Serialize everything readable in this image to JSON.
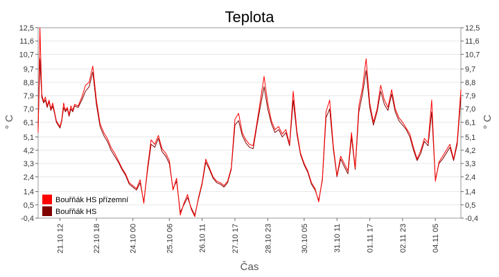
{
  "chart_data": {
    "type": "line",
    "title": "Teplota",
    "xlabel": "Čas",
    "ylabel": "° C",
    "ylabel_right": "° C",
    "ylim": [
      -0.4,
      12.5
    ],
    "yticks": [
      "12,5",
      "11,6",
      "10,7",
      "9,7",
      "8,8",
      "7,9",
      "7,0",
      "6,1",
      "5,1",
      "4,2",
      "3,3",
      "2,4",
      "1,4",
      "0,5",
      "-0,4"
    ],
    "ytick_values": [
      12.5,
      11.6,
      10.7,
      9.7,
      8.8,
      7.9,
      7.0,
      6.1,
      5.1,
      4.2,
      3.3,
      2.4,
      1.4,
      0.5,
      -0.4
    ],
    "xticks": [
      "21.10 12",
      "22.10 18",
      "24.10 00",
      "25.10 06",
      "26.10 11",
      "27.10 17",
      "28.10 23",
      "30.10 05",
      "31.10 11",
      "01.11 17",
      "02.11 23",
      "04.11 05"
    ],
    "grid": true,
    "legend_position": "bottom-left",
    "series": [
      {
        "name": "Bouřňák HS přízemní",
        "color": "#ff0000",
        "x": [
          0,
          0.05,
          0.1,
          0.15,
          0.2,
          0.25,
          0.3,
          0.35,
          0.4,
          0.45,
          0.5,
          0.55,
          0.6,
          0.65,
          0.7,
          0.75,
          0.8,
          0.85,
          0.9,
          0.95,
          1.0,
          1.1,
          1.2,
          1.3,
          1.4,
          1.5,
          1.6,
          1.7,
          1.8,
          1.9,
          2.0,
          2.1,
          2.2,
          2.3,
          2.4,
          2.5,
          2.6,
          2.7,
          2.8,
          2.9,
          3.0,
          3.1,
          3.2,
          3.3,
          3.4,
          3.5,
          3.6,
          3.7,
          3.8,
          3.9,
          4.0,
          4.1,
          4.2,
          4.3,
          4.4,
          4.5,
          4.6,
          4.7,
          4.8,
          4.9,
          5.0,
          5.1,
          5.2,
          5.3,
          5.4,
          5.5,
          5.6,
          5.7,
          5.8,
          5.9,
          6.0,
          6.1,
          6.2,
          6.3,
          6.4,
          6.5,
          6.6,
          6.7,
          6.8,
          6.9,
          7.0,
          7.1,
          7.2,
          7.3,
          7.4,
          7.5,
          7.6,
          7.7,
          7.8,
          7.9,
          8.0,
          8.1,
          8.2,
          8.3,
          8.4,
          8.5,
          8.6,
          8.7,
          8.8,
          8.9,
          9.0,
          9.1,
          9.2,
          9.3,
          9.4,
          9.5,
          9.6,
          9.7,
          9.8,
          9.9,
          10.0,
          10.1,
          10.2,
          10.3,
          10.4,
          10.5,
          10.6,
          10.7,
          10.8,
          10.9,
          11.0,
          11.1,
          11.2,
          11.3,
          11.4,
          11.5,
          11.6
        ],
        "values": [
          5.4,
          12.5,
          8.0,
          7.5,
          7.8,
          7.2,
          7.6,
          7.0,
          7.4,
          6.8,
          6.2,
          6.0,
          5.8,
          6.3,
          7.4,
          6.9,
          7.1,
          6.6,
          7.2,
          6.9,
          7.3,
          7.2,
          7.8,
          8.6,
          8.8,
          9.9,
          7.6,
          6.0,
          5.4,
          5.0,
          4.4,
          4.0,
          3.5,
          3.0,
          2.6,
          2.0,
          1.8,
          1.6,
          2.2,
          0.6,
          3.0,
          4.9,
          4.6,
          5.2,
          4.3,
          4.0,
          3.5,
          1.5,
          2.3,
          -0.2,
          0.6,
          1.2,
          0.2,
          -0.3,
          1.0,
          2.0,
          3.6,
          3.0,
          2.4,
          2.1,
          2.0,
          1.8,
          2.1,
          3.0,
          6.3,
          6.7,
          5.4,
          4.9,
          4.6,
          4.5,
          6.0,
          7.6,
          9.2,
          7.4,
          6.2,
          5.6,
          5.8,
          5.3,
          5.6,
          4.6,
          8.2,
          5.5,
          4.0,
          3.3,
          2.8,
          2.0,
          1.6,
          0.7,
          2.3,
          6.8,
          7.6,
          4.5,
          2.5,
          3.8,
          3.3,
          2.8,
          5.4,
          3.0,
          7.2,
          8.4,
          10.4,
          7.4,
          6.1,
          7.0,
          8.6,
          7.6,
          7.1,
          8.3,
          7.0,
          6.4,
          6.1,
          5.7,
          5.3,
          4.4,
          3.6,
          4.2,
          5.0,
          4.7,
          7.6,
          2.1,
          3.4,
          3.8,
          4.2,
          4.6,
          3.6,
          4.8,
          8.3
        ]
      },
      {
        "name": "Bouřňák HS",
        "color": "#800000",
        "x": [
          0,
          0.05,
          0.1,
          0.15,
          0.2,
          0.25,
          0.3,
          0.35,
          0.4,
          0.45,
          0.5,
          0.55,
          0.6,
          0.65,
          0.7,
          0.75,
          0.8,
          0.85,
          0.9,
          0.95,
          1.0,
          1.1,
          1.2,
          1.3,
          1.4,
          1.5,
          1.6,
          1.7,
          1.8,
          1.9,
          2.0,
          2.1,
          2.2,
          2.3,
          2.4,
          2.5,
          2.6,
          2.7,
          2.8,
          2.9,
          3.0,
          3.1,
          3.2,
          3.3,
          3.4,
          3.5,
          3.6,
          3.7,
          3.8,
          3.9,
          4.0,
          4.1,
          4.2,
          4.3,
          4.4,
          4.5,
          4.6,
          4.7,
          4.8,
          4.9,
          5.0,
          5.1,
          5.2,
          5.3,
          5.4,
          5.5,
          5.6,
          5.7,
          5.8,
          5.9,
          6.0,
          6.1,
          6.2,
          6.3,
          6.4,
          6.5,
          6.6,
          6.7,
          6.8,
          6.9,
          7.0,
          7.1,
          7.2,
          7.3,
          7.4,
          7.5,
          7.6,
          7.7,
          7.8,
          7.9,
          8.0,
          8.1,
          8.2,
          8.3,
          8.4,
          8.5,
          8.6,
          8.7,
          8.8,
          8.9,
          9.0,
          9.1,
          9.2,
          9.3,
          9.4,
          9.5,
          9.6,
          9.7,
          9.8,
          9.9,
          10.0,
          10.1,
          10.2,
          10.3,
          10.4,
          10.5,
          10.6,
          10.7,
          10.8,
          10.9,
          11.0,
          11.1,
          11.2,
          11.3,
          11.4,
          11.5,
          11.6
        ],
        "values": [
          5.6,
          10.4,
          7.8,
          7.4,
          7.6,
          7.1,
          7.5,
          6.9,
          7.2,
          6.7,
          6.1,
          5.9,
          5.7,
          6.2,
          7.1,
          6.8,
          7.0,
          6.5,
          7.0,
          6.8,
          7.2,
          7.1,
          7.6,
          8.2,
          8.5,
          9.5,
          7.3,
          5.8,
          5.2,
          4.8,
          4.2,
          3.8,
          3.4,
          2.9,
          2.5,
          1.9,
          1.7,
          1.5,
          2.0,
          0.7,
          2.8,
          4.6,
          4.4,
          5.0,
          4.1,
          3.8,
          3.3,
          1.6,
          2.1,
          0.0,
          0.5,
          1.0,
          0.3,
          -0.2,
          0.9,
          1.9,
          3.4,
          2.9,
          2.3,
          2.0,
          1.9,
          1.7,
          2.0,
          2.9,
          5.9,
          6.2,
          5.2,
          4.7,
          4.4,
          4.3,
          5.8,
          7.2,
          8.5,
          7.0,
          6.0,
          5.4,
          5.6,
          5.1,
          5.4,
          4.5,
          7.6,
          5.3,
          3.9,
          3.2,
          2.7,
          1.9,
          1.5,
          0.8,
          2.2,
          6.4,
          7.0,
          4.3,
          2.4,
          3.6,
          3.1,
          2.6,
          5.1,
          2.9,
          6.8,
          8.0,
          9.6,
          7.1,
          5.9,
          6.8,
          8.2,
          7.3,
          6.9,
          8.0,
          6.8,
          6.2,
          5.9,
          5.6,
          5.1,
          4.2,
          3.5,
          4.0,
          4.8,
          4.5,
          6.8,
          2.2,
          3.3,
          3.6,
          4.0,
          4.4,
          3.5,
          4.6,
          7.8
        ]
      }
    ]
  }
}
